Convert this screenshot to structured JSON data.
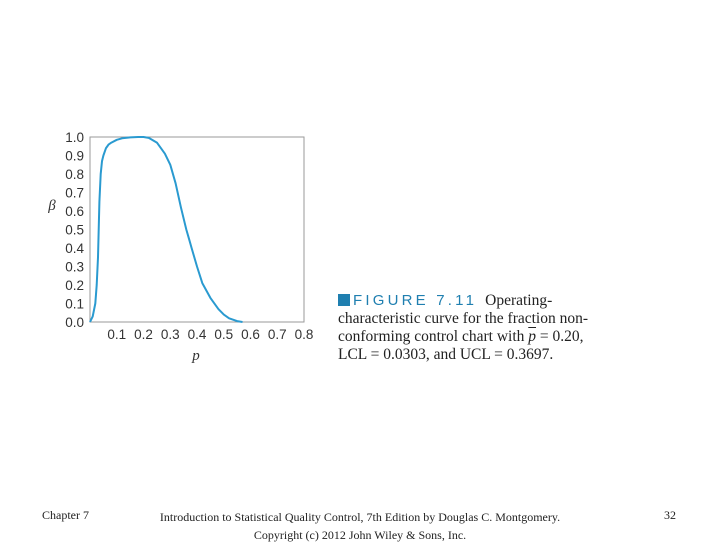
{
  "chart_data": {
    "type": "line",
    "xlabel": "p",
    "ylabel": "β",
    "xlim": [
      0,
      0.8
    ],
    "ylim": [
      0,
      1.0
    ],
    "xticks": [
      "0.1",
      "0.2",
      "0.3",
      "0.4",
      "0.5",
      "0.6",
      "0.7",
      "0.8"
    ],
    "yticks": [
      "0.0",
      "0.1",
      "0.2",
      "0.3",
      "0.4",
      "0.5",
      "0.6",
      "0.7",
      "0.8",
      "0.9",
      "1.0"
    ],
    "grid": false,
    "series": [
      {
        "color": "#2a9ad0",
        "x": [
          0.0,
          0.01,
          0.02,
          0.025,
          0.03,
          0.035,
          0.04,
          0.045,
          0.05,
          0.06,
          0.07,
          0.08,
          0.1,
          0.12,
          0.15,
          0.18,
          0.2,
          0.22,
          0.25,
          0.28,
          0.3,
          0.32,
          0.34,
          0.36,
          0.37,
          0.38,
          0.4,
          0.42,
          0.45,
          0.48,
          0.5,
          0.52,
          0.55,
          0.57
        ],
        "y": [
          0.0,
          0.03,
          0.1,
          0.2,
          0.35,
          0.65,
          0.8,
          0.87,
          0.9,
          0.94,
          0.96,
          0.97,
          0.985,
          0.993,
          0.998,
          1.0,
          1.0,
          0.995,
          0.97,
          0.91,
          0.85,
          0.75,
          0.62,
          0.5,
          0.45,
          0.4,
          0.3,
          0.21,
          0.13,
          0.07,
          0.04,
          0.02,
          0.005,
          0.0
        ]
      }
    ]
  },
  "caption": {
    "figure_label": "FIGURE 7.11",
    "line1_text": "Operating-",
    "line2_text": "characteristic curve for the fraction non-",
    "line3_pre": "conforming control chart with",
    "line3_symbol": "p",
    "line3_post": "= 0.20,",
    "line4_text": "LCL = 0.0303, and UCL = 0.3697."
  },
  "footer": {
    "chapter": "Chapter 7",
    "citation_line1": "Introduction to Statistical Quality Control, 7th Edition by Douglas C. Montgomery.",
    "citation_line2": "Copyright (c) 2012 John Wiley & Sons, Inc.",
    "page_number": "32"
  }
}
